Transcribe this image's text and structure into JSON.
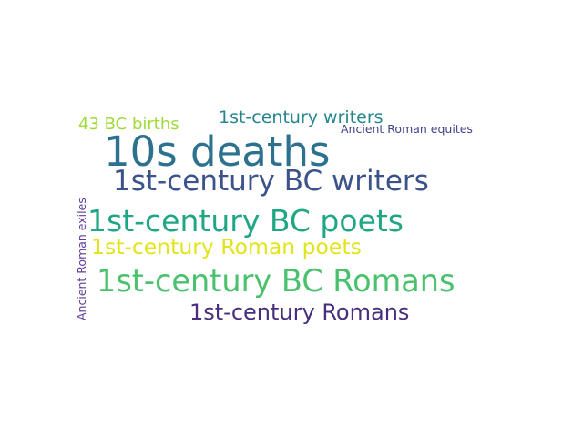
{
  "words": [
    {
      "text": "10s deaths",
      "color": "#2c728e"
    },
    {
      "text": "1st-century BC writers",
      "color": "#3b528b"
    },
    {
      "text": "1st-century BC poets",
      "color": "#21a685"
    },
    {
      "text": "1st-century Roman poets",
      "color": "#e2e418"
    },
    {
      "text": "1st-century BC Romans",
      "color": "#4ac16d"
    },
    {
      "text": "1st-century Romans",
      "color": "#472f7d"
    },
    {
      "text": "1st-century writers",
      "color": "#25858e"
    },
    {
      "text": "43 BC births",
      "color": "#a0da39"
    },
    {
      "text": "Ancient Roman equites",
      "color": "#414487"
    },
    {
      "text": "Ancient Roman exiles",
      "color": "#5e3c99"
    }
  ]
}
